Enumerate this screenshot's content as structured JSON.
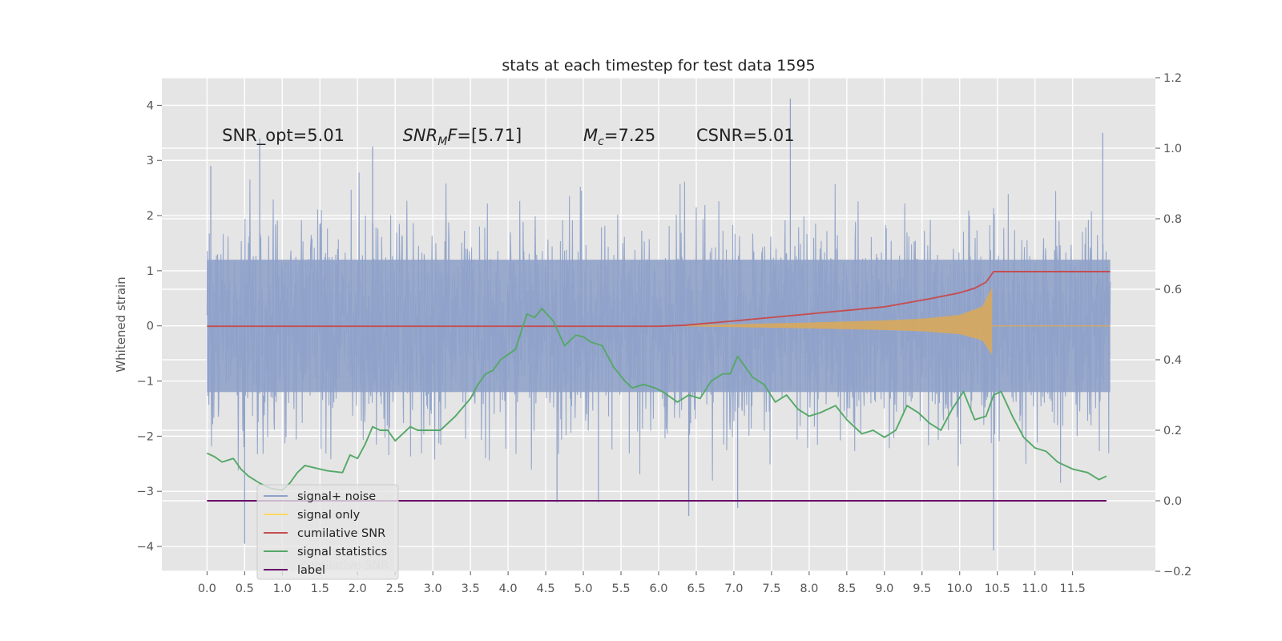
{
  "chart_data": {
    "type": "line",
    "title": "stats at each timestep for test data 1595",
    "ylabel": "Whitened strain",
    "xlabel": "",
    "y2label": "",
    "xlim": [
      -0.6,
      12.6
    ],
    "ylim": [
      -4.45,
      4.5
    ],
    "y2lim": [
      -0.2,
      1.2
    ],
    "x_ticks": [
      0.0,
      0.5,
      1.0,
      1.5,
      2.0,
      2.5,
      3.0,
      3.5,
      4.0,
      4.5,
      5.0,
      5.5,
      6.0,
      6.5,
      7.0,
      7.5,
      8.0,
      8.5,
      9.0,
      9.5,
      10.0,
      10.5,
      11.0,
      11.5
    ],
    "x_tick_labels": [
      "0.0",
      "0.5",
      "1.0",
      "1.5",
      "2.0",
      "2.5",
      "3.0",
      "3.5",
      "4.0",
      "4.5",
      "5.0",
      "5.5",
      "6.0",
      "6.5",
      "7.0",
      "7.5",
      "8.0",
      "8.5",
      "9.0",
      "9.5",
      "10.0",
      "10.5",
      "11.0",
      "11.5"
    ],
    "y_ticks": [
      4,
      3,
      2,
      1,
      0,
      -1,
      -2,
      -3,
      -4
    ],
    "y_tick_labels": [
      "4",
      "3",
      "2",
      "1",
      "0",
      "−1",
      "−2",
      "−3",
      "−4"
    ],
    "y2_ticks": [
      1.2,
      1.0,
      0.8,
      0.6,
      0.4,
      0.2,
      0.0,
      -0.2
    ],
    "y2_tick_labels": [
      "1.2",
      "1.0",
      "0.8",
      "0.6",
      "0.4",
      "0.2",
      "0.0",
      "−0.2"
    ],
    "grid": true,
    "legend_position": "lower-left",
    "annotations": [
      {
        "text": "SNR_opt=5.01",
        "math": false,
        "x": 0.2,
        "y": 3.35
      },
      {
        "text": "SNR_MF=[5.71]",
        "math": true,
        "base": "SNR",
        "sub": "M",
        "rest": "F=[5.71]",
        "x": 2.6,
        "y": 3.35
      },
      {
        "text": "M_c=7.25",
        "math": true,
        "base": "M",
        "sub": "c",
        "rest": "=7.25",
        "x": 5.0,
        "y": 3.35
      },
      {
        "text": "CSNR=5.01",
        "math": false,
        "x": 6.5,
        "y": 3.35
      }
    ],
    "series": [
      {
        "name": "signal+ noise",
        "axis": "left",
        "color": "#8fa2c9",
        "kind": "noise",
        "x_range": [
          0.0,
          12.0
        ],
        "envelope": {
          "positive_typical": 2.0,
          "negative_typical": -2.1,
          "max": 4.12,
          "min": -4.07
        },
        "spikes": [
          {
            "x": 0.05,
            "y": 2.9
          },
          {
            "x": 0.5,
            "y": -3.95
          },
          {
            "x": 0.7,
            "y": 3.4
          },
          {
            "x": 2.2,
            "y": 3.25
          },
          {
            "x": 4.65,
            "y": -3.2
          },
          {
            "x": 5.2,
            "y": -3.2
          },
          {
            "x": 6.4,
            "y": -3.45
          },
          {
            "x": 7.05,
            "y": -3.3
          },
          {
            "x": 7.75,
            "y": 4.12
          },
          {
            "x": 10.45,
            "y": -4.07
          },
          {
            "x": 11.9,
            "y": 3.5
          }
        ]
      },
      {
        "name": "signal only",
        "axis": "left",
        "color": "#ffd966",
        "kind": "chirp",
        "x_range": [
          6.3,
          12.0
        ],
        "merger_x": 10.43,
        "amplitude": [
          [
            6.3,
            0.01
          ],
          [
            7.0,
            0.03
          ],
          [
            8.0,
            0.06
          ],
          [
            9.0,
            0.1
          ],
          [
            9.5,
            0.13
          ],
          [
            10.0,
            0.2
          ],
          [
            10.3,
            0.35
          ],
          [
            10.43,
            0.7
          ],
          [
            10.45,
            0.0
          ]
        ]
      },
      {
        "name": "cumilative SNR",
        "axis": "right",
        "color": "#c44e52",
        "x": [
          0.0,
          6.0,
          6.35,
          7.0,
          8.0,
          9.0,
          9.6,
          10.0,
          10.2,
          10.35,
          10.45,
          12.0
        ],
        "y": [
          0.495,
          0.495,
          0.498,
          0.51,
          0.53,
          0.55,
          0.573,
          0.59,
          0.603,
          0.62,
          0.65,
          0.65
        ]
      },
      {
        "name": "signal statistics",
        "axis": "right",
        "color": "#55a868",
        "x": [
          0.0,
          0.1,
          0.2,
          0.35,
          0.45,
          0.55,
          0.7,
          0.85,
          1.0,
          1.1,
          1.2,
          1.3,
          1.5,
          1.6,
          1.8,
          1.9,
          2.0,
          2.1,
          2.2,
          2.3,
          2.4,
          2.5,
          2.7,
          2.8,
          3.0,
          3.1,
          3.3,
          3.5,
          3.6,
          3.7,
          3.8,
          3.9,
          4.1,
          4.25,
          4.35,
          4.45,
          4.6,
          4.75,
          4.9,
          5.0,
          5.1,
          5.25,
          5.4,
          5.55,
          5.65,
          5.8,
          5.95,
          6.05,
          6.25,
          6.4,
          6.55,
          6.7,
          6.85,
          6.95,
          7.05,
          7.15,
          7.25,
          7.4,
          7.55,
          7.7,
          7.85,
          8.0,
          8.15,
          8.35,
          8.5,
          8.7,
          8.85,
          9.0,
          9.15,
          9.3,
          9.45,
          9.6,
          9.75,
          9.9,
          10.05,
          10.2,
          10.35,
          10.45,
          10.55,
          10.7,
          10.85,
          11.0,
          11.15,
          11.3,
          11.5,
          11.7,
          11.85,
          11.95
        ],
        "y": [
          0.135,
          0.125,
          0.11,
          0.12,
          0.09,
          0.07,
          0.05,
          0.035,
          0.03,
          0.05,
          0.08,
          0.1,
          0.09,
          0.085,
          0.08,
          0.13,
          0.12,
          0.16,
          0.21,
          0.2,
          0.2,
          0.17,
          0.21,
          0.2,
          0.2,
          0.2,
          0.24,
          0.29,
          0.33,
          0.36,
          0.37,
          0.4,
          0.43,
          0.53,
          0.52,
          0.545,
          0.51,
          0.44,
          0.47,
          0.465,
          0.45,
          0.44,
          0.38,
          0.34,
          0.32,
          0.33,
          0.32,
          0.31,
          0.28,
          0.3,
          0.29,
          0.34,
          0.36,
          0.36,
          0.41,
          0.38,
          0.35,
          0.33,
          0.28,
          0.3,
          0.26,
          0.24,
          0.25,
          0.27,
          0.23,
          0.19,
          0.2,
          0.18,
          0.2,
          0.27,
          0.25,
          0.22,
          0.2,
          0.26,
          0.31,
          0.23,
          0.24,
          0.3,
          0.31,
          0.24,
          0.18,
          0.15,
          0.14,
          0.11,
          0.09,
          0.08,
          0.06,
          0.07
        ]
      },
      {
        "name": "label",
        "axis": "right",
        "color": "#6a0d6a",
        "x": [
          0.0,
          11.95
        ],
        "y": [
          0.0,
          0.0
        ]
      }
    ],
    "legend": [
      {
        "label": "signal+ noise",
        "color": "#8fa2c9"
      },
      {
        "label": "signal only",
        "color": "#ffd966"
      },
      {
        "label": "cumilative SNR",
        "color": "#c44e52"
      },
      {
        "label": "signal statistics",
        "color": "#55a868"
      },
      {
        "label": "label",
        "color": "#6a0d6a"
      }
    ],
    "hidden_text": "cumilative SNR",
    "colors": {
      "plot_bg": "#e5e5e5",
      "grid": "#ffffff",
      "text": "#222222",
      "tick": "#555555"
    }
  }
}
